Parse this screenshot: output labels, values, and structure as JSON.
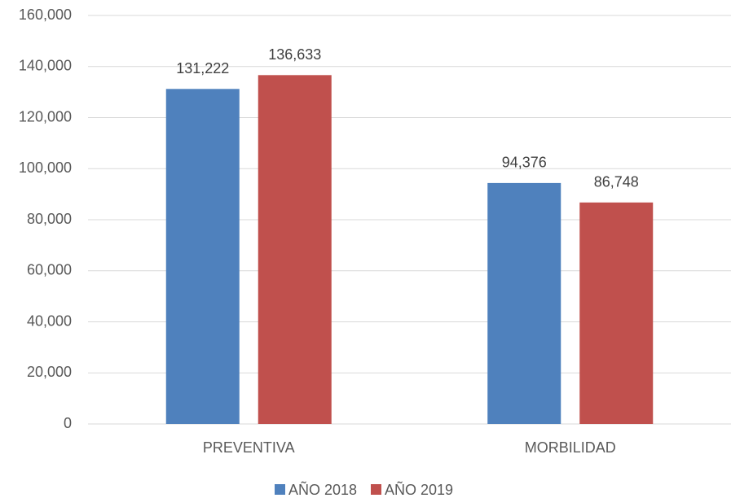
{
  "chart_data": {
    "type": "bar",
    "categories": [
      "PREVENTIVA",
      "MORBILIDAD"
    ],
    "series": [
      {
        "name": "AÑO 2018",
        "color": "#4f81bd",
        "values": [
          131222,
          94376
        ],
        "value_labels": [
          "131,222",
          "94,376"
        ]
      },
      {
        "name": "AÑO 2019",
        "color": "#c0504d",
        "values": [
          136633,
          86748
        ],
        "value_labels": [
          "136,633",
          "86,748"
        ]
      }
    ],
    "ylim": [
      0,
      160000
    ],
    "yticks": [
      0,
      {
        "value": 20000,
        "label": "20,000"
      },
      {
        "value": 40000,
        "label": "40,000"
      },
      {
        "value": 60000,
        "label": "60,000"
      },
      {
        "value": 80000,
        "label": "80,000"
      },
      {
        "value": 100000,
        "label": "100,000"
      },
      {
        "value": 120000,
        "label": "120,000"
      },
      {
        "value": 140000,
        "label": "140,000"
      },
      {
        "value": 160000,
        "label": "160,000"
      }
    ],
    "grid": true,
    "legend": "bottom"
  }
}
